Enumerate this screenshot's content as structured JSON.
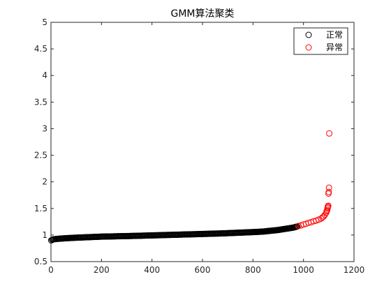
{
  "chart_data": {
    "type": "scatter",
    "title": "GMM算法聚类",
    "xlabel": "",
    "ylabel": "",
    "xlim": [
      0,
      1200
    ],
    "ylim": [
      0.5,
      5
    ],
    "xticks": [
      0,
      200,
      400,
      600,
      800,
      1000,
      1200
    ],
    "xtick_labels": [
      "0",
      "200",
      "400",
      "600",
      "800",
      "1000",
      "1200"
    ],
    "yticks": [
      0.5,
      1,
      1.5,
      2,
      2.5,
      3,
      3.5,
      4,
      4.5,
      5
    ],
    "ytick_labels": [
      "0.5",
      "1",
      "1.5",
      "2",
      "2.5",
      "3",
      "3.5",
      "4",
      "4.5",
      "5"
    ],
    "grid": false,
    "legend_position": "top-right",
    "marker": "open-circle",
    "series": [
      {
        "name": "正常",
        "color": "#000000",
        "x": [
          1,
          5,
          10,
          20,
          30,
          45,
          60,
          80,
          100,
          125,
          150,
          175,
          200,
          225,
          250,
          275,
          300,
          325,
          350,
          375,
          400,
          425,
          450,
          475,
          500,
          525,
          550,
          575,
          600,
          625,
          650,
          675,
          700,
          725,
          750,
          775,
          800,
          820,
          840,
          860,
          880,
          900,
          920,
          940,
          960,
          975
        ],
        "y": [
          0.9,
          0.91,
          0.92,
          0.925,
          0.93,
          0.935,
          0.94,
          0.945,
          0.95,
          0.955,
          0.96,
          0.965,
          0.97,
          0.972,
          0.975,
          0.978,
          0.98,
          0.983,
          0.986,
          0.99,
          0.993,
          0.996,
          1.0,
          1.003,
          1.006,
          1.01,
          1.013,
          1.016,
          1.02,
          1.023,
          1.027,
          1.03,
          1.035,
          1.04,
          1.045,
          1.05,
          1.055,
          1.06,
          1.065,
          1.075,
          1.085,
          1.095,
          1.11,
          1.125,
          1.14,
          1.16
        ]
      },
      {
        "name": "异常",
        "color": "#ff0000",
        "x": [
          980,
          990,
          1000,
          1010,
          1020,
          1030,
          1040,
          1050,
          1060,
          1070,
          1075,
          1080,
          1085,
          1090,
          1092,
          1094,
          1095,
          1096,
          1097,
          1098,
          1099,
          1100,
          1101,
          1102
        ],
        "y": [
          1.17,
          1.18,
          1.2,
          1.21,
          1.23,
          1.24,
          1.26,
          1.27,
          1.29,
          1.31,
          1.33,
          1.35,
          1.38,
          1.42,
          1.45,
          1.47,
          1.5,
          1.52,
          1.54,
          1.55,
          1.78,
          1.81,
          1.89,
          2.91
        ]
      }
    ]
  }
}
